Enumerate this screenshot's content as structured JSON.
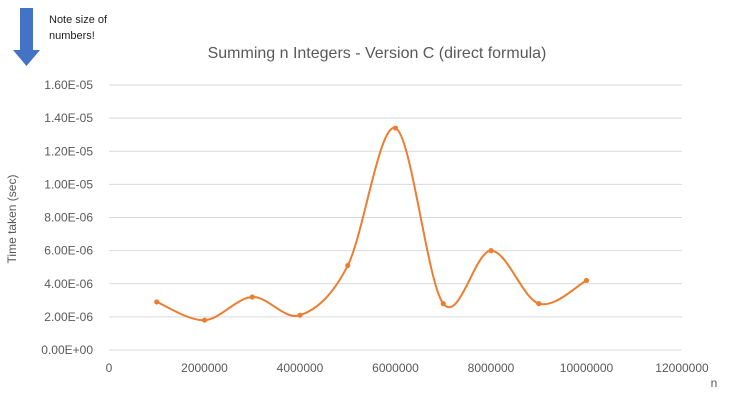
{
  "annotation": {
    "text_line1": "Note size of",
    "text_line2": "numbers!",
    "icon": "down-arrow-icon",
    "color": "#4472C4"
  },
  "chart_data": {
    "type": "line",
    "smooth": true,
    "markers": true,
    "title": "Summing n Integers - Version C  (direct formula)",
    "xlabel": "n",
    "ylabel": "Time taken (sec)",
    "xlim": [
      0,
      12000000
    ],
    "ylim": [
      0,
      1.6e-05
    ],
    "grid": "horizontal",
    "legend": "none",
    "x_ticks": [
      {
        "value": 0,
        "label": "0"
      },
      {
        "value": 2000000,
        "label": "2000000"
      },
      {
        "value": 4000000,
        "label": "4000000"
      },
      {
        "value": 6000000,
        "label": "6000000"
      },
      {
        "value": 8000000,
        "label": "8000000"
      },
      {
        "value": 10000000,
        "label": "10000000"
      },
      {
        "value": 12000000,
        "label": "12000000"
      }
    ],
    "y_ticks": [
      {
        "value": 0,
        "label": "0.00E+00"
      },
      {
        "value": 2e-06,
        "label": "2.00E-06"
      },
      {
        "value": 4e-06,
        "label": "4.00E-06"
      },
      {
        "value": 6e-06,
        "label": "6.00E-06"
      },
      {
        "value": 8e-06,
        "label": "8.00E-06"
      },
      {
        "value": 1e-05,
        "label": "1.00E-05"
      },
      {
        "value": 1.2e-05,
        "label": "1.20E-05"
      },
      {
        "value": 1.4e-05,
        "label": "1.40E-05"
      },
      {
        "value": 1.6e-05,
        "label": "1.60E-05"
      }
    ],
    "series": [
      {
        "color": "#ED7D31",
        "x": [
          1000000,
          2000000,
          3000000,
          4000000,
          5000000,
          6000000,
          7000000,
          8000000,
          9000000,
          10000000
        ],
        "y": [
          2.9e-06,
          1.8e-06,
          3.2e-06,
          2.1e-06,
          5.1e-06,
          1.34e-05,
          2.8e-06,
          6e-06,
          2.8e-06,
          4.2e-06
        ]
      }
    ]
  }
}
